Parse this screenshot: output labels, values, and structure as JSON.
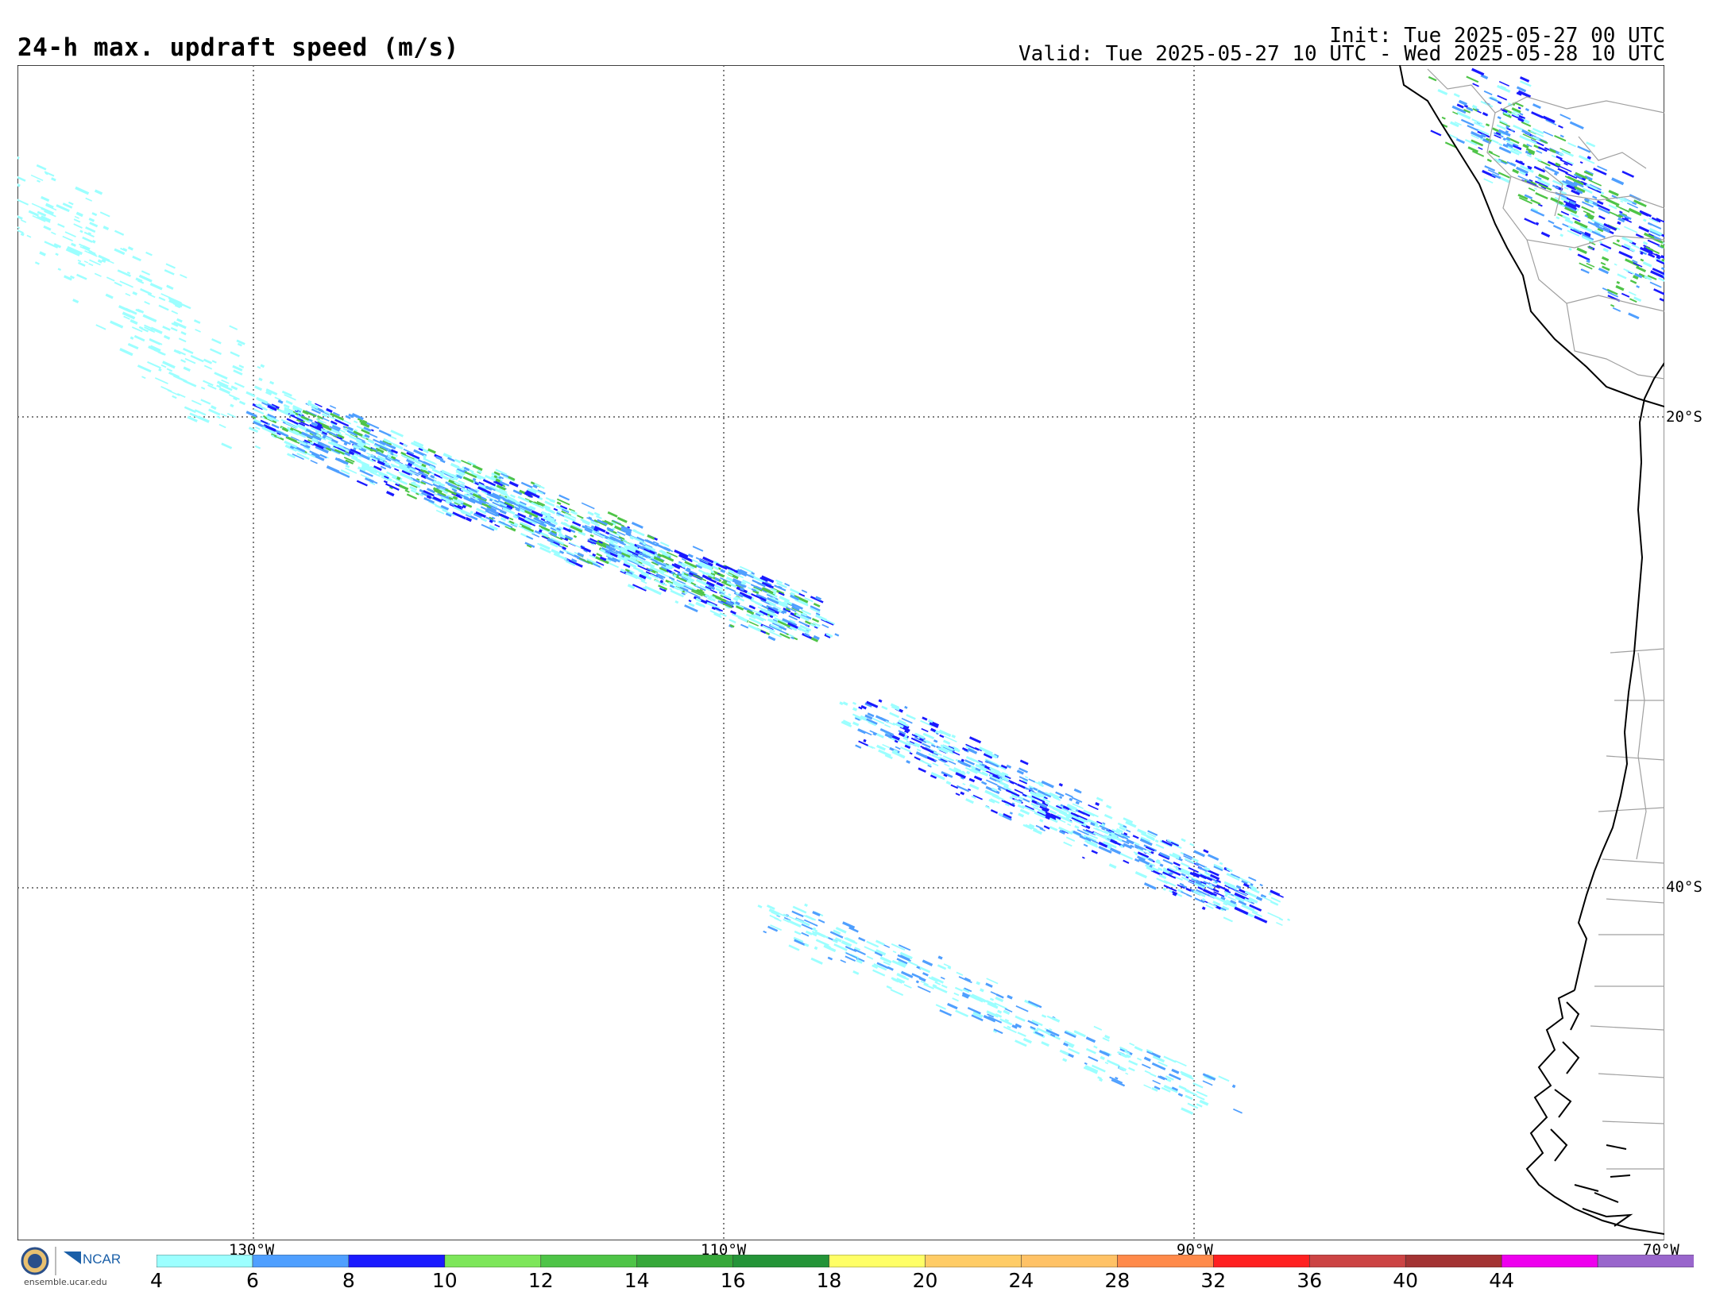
{
  "header": {
    "title": "24-h max. updraft speed (m/s)",
    "init": "Init: Tue 2025-05-27 00 UTC",
    "valid": "Valid: Tue 2025-05-27 10 UTC - Wed 2025-05-28 10 UTC"
  },
  "map": {
    "lat_labels": [
      "20°S",
      "40°S"
    ],
    "lon_labels": [
      "130°W",
      "110°W",
      "90°W",
      "70°W"
    ],
    "coastline_color": "#000000",
    "border_color": "#a0a0a0",
    "gridline_style": "dotted"
  },
  "colorbar": {
    "ticks": [
      "4",
      "6",
      "8",
      "10",
      "12",
      "14",
      "16",
      "18",
      "20",
      "24",
      "28",
      "32",
      "36",
      "40",
      "44"
    ],
    "colors": [
      "#9cffff",
      "#4f9fff",
      "#1a1aff",
      "#7de65a",
      "#4ec447",
      "#36a83a",
      "#249438",
      "#ffff66",
      "#ffcc66",
      "#ffc266",
      "#ff8a4a",
      "#ff2020",
      "#cc4444",
      "#a33333",
      "#ee00ee",
      "#9966cc"
    ]
  },
  "logo": {
    "nsf": "NSF",
    "ncar": "NCAR",
    "url": "ensemble.ucar.edu"
  }
}
